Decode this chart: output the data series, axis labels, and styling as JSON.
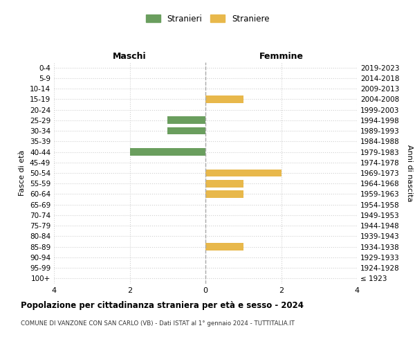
{
  "age_groups": [
    "100+",
    "95-99",
    "90-94",
    "85-89",
    "80-84",
    "75-79",
    "70-74",
    "65-69",
    "60-64",
    "55-59",
    "50-54",
    "45-49",
    "40-44",
    "35-39",
    "30-34",
    "25-29",
    "20-24",
    "15-19",
    "10-14",
    "5-9",
    "0-4"
  ],
  "birth_years": [
    "≤ 1923",
    "1924-1928",
    "1929-1933",
    "1934-1938",
    "1939-1943",
    "1944-1948",
    "1949-1953",
    "1954-1958",
    "1959-1963",
    "1964-1968",
    "1969-1973",
    "1974-1978",
    "1979-1983",
    "1984-1988",
    "1989-1993",
    "1994-1998",
    "1999-2003",
    "2004-2008",
    "2009-2013",
    "2014-2018",
    "2019-2023"
  ],
  "males": [
    0,
    0,
    0,
    0,
    0,
    0,
    0,
    0,
    0,
    0,
    0,
    0,
    2,
    0,
    1,
    1,
    0,
    0,
    0,
    0,
    0
  ],
  "females": [
    0,
    0,
    0,
    1,
    0,
    0,
    0,
    0,
    1,
    1,
    2,
    0,
    0,
    0,
    0,
    0,
    0,
    1,
    0,
    0,
    0
  ],
  "male_color": "#6a9e5e",
  "female_color": "#e8b84b",
  "xlim": 4,
  "title": "Popolazione per cittadinanza straniera per età e sesso - 2024",
  "subtitle": "COMUNE DI VANZONE CON SAN CARLO (VB) - Dati ISTAT al 1° gennaio 2024 - TUTTITALIA.IT",
  "ylabel_left": "Fasce di età",
  "ylabel_right": "Anni di nascita",
  "xlabel_maschi": "Maschi",
  "xlabel_femmine": "Femmine",
  "legend_male": "Stranieri",
  "legend_female": "Straniere",
  "bg_color": "#ffffff",
  "grid_color": "#d0d0d0",
  "bar_height": 0.7,
  "xticks": [
    -4,
    -2,
    0,
    2,
    4
  ],
  "xtick_labels": [
    "4",
    "2",
    "0",
    "2",
    "4"
  ]
}
